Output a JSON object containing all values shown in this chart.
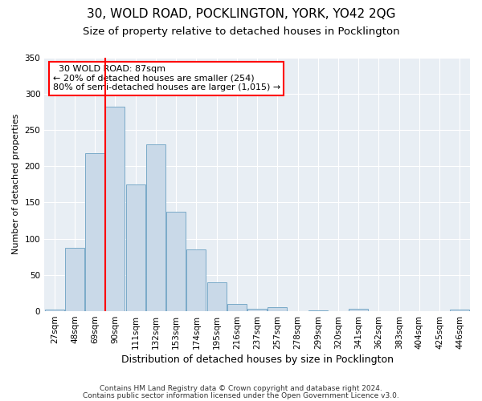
{
  "title1": "30, WOLD ROAD, POCKLINGTON, YORK, YO42 2QG",
  "title2": "Size of property relative to detached houses in Pocklington",
  "xlabel": "Distribution of detached houses by size in Pocklington",
  "ylabel": "Number of detached properties",
  "footnote1": "Contains HM Land Registry data © Crown copyright and database right 2024.",
  "footnote2": "Contains public sector information licensed under the Open Government Licence v3.0.",
  "bin_labels": [
    "27sqm",
    "48sqm",
    "69sqm",
    "90sqm",
    "111sqm",
    "132sqm",
    "153sqm",
    "174sqm",
    "195sqm",
    "216sqm",
    "237sqm",
    "257sqm",
    "278sqm",
    "299sqm",
    "320sqm",
    "341sqm",
    "362sqm",
    "383sqm",
    "404sqm",
    "425sqm",
    "446sqm"
  ],
  "bar_values": [
    2,
    87,
    218,
    282,
    175,
    230,
    137,
    85,
    40,
    10,
    3,
    6,
    0,
    1,
    0,
    3,
    0,
    0,
    0,
    0,
    2
  ],
  "bar_color": "#c9d9e8",
  "bar_edge_color": "#7aaac8",
  "vline_color": "red",
  "annotation_text": "  30 WOLD ROAD: 87sqm\n← 20% of detached houses are smaller (254)\n80% of semi-detached houses are larger (1,015) →",
  "annotation_box_color": "white",
  "annotation_box_edge": "red",
  "ylim": [
    0,
    350
  ],
  "yticks": [
    0,
    50,
    100,
    150,
    200,
    250,
    300,
    350
  ],
  "plot_bg_color": "#e8eef4",
  "title1_fontsize": 11,
  "title2_fontsize": 9.5,
  "xlabel_fontsize": 9,
  "ylabel_fontsize": 8,
  "tick_fontsize": 7.5,
  "footnote_fontsize": 6.5
}
